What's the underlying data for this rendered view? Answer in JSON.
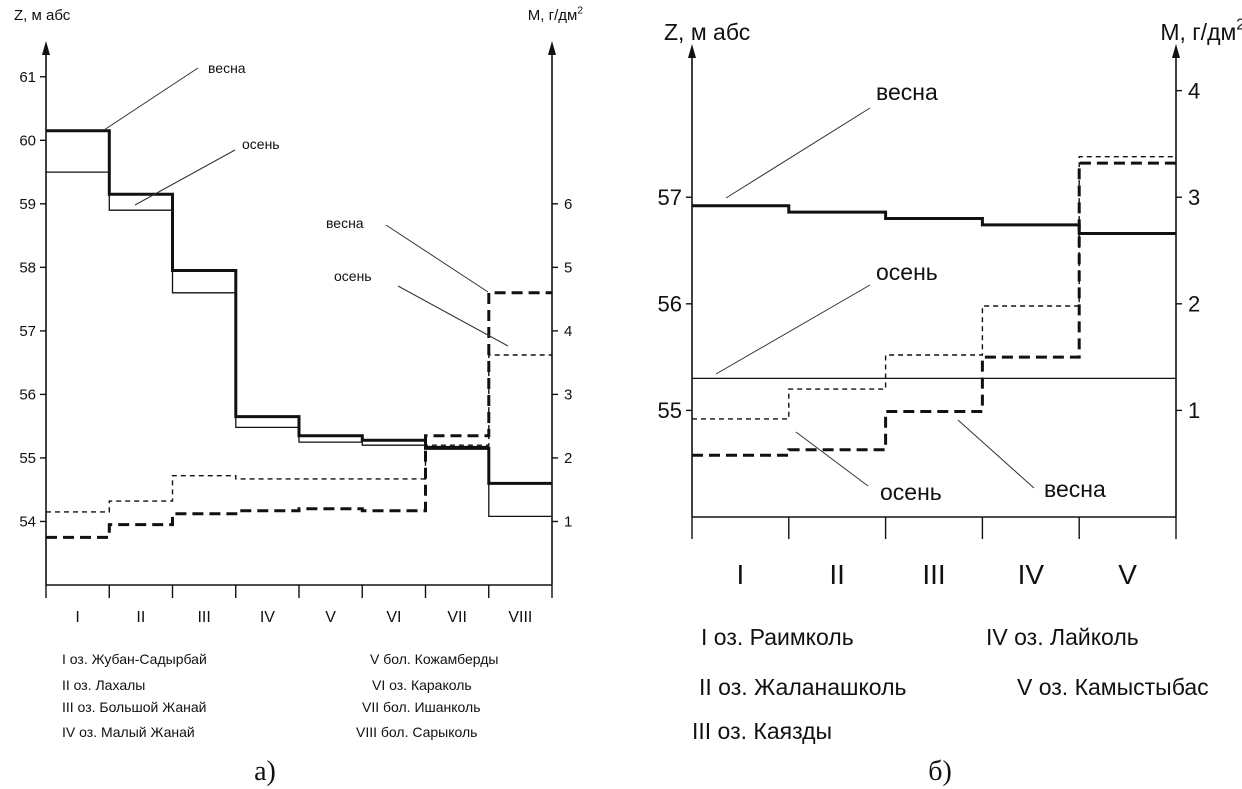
{
  "chart_data": [
    {
      "type": "step",
      "caption": "а)",
      "left_axis": {
        "label": "Z, м абс",
        "range": [
          53,
          61.5
        ],
        "ticks": [
          54,
          55,
          56,
          57,
          58,
          59,
          60,
          61
        ]
      },
      "right_axis": {
        "label": "M, г/дм²",
        "range": [
          0,
          8.5
        ],
        "ticks": [
          1,
          2,
          3,
          4,
          5,
          6
        ]
      },
      "categories": [
        "I",
        "II",
        "III",
        "IV",
        "V",
        "VI",
        "VII",
        "VIII"
      ],
      "series": [
        {
          "name": "весна",
          "axis": "left",
          "style": "thick",
          "values": [
            60.15,
            59.15,
            57.95,
            55.65,
            55.35,
            55.28,
            55.15,
            54.6
          ]
        },
        {
          "name": "осень",
          "axis": "left",
          "style": "thin",
          "values": [
            59.5,
            58.9,
            57.6,
            55.48,
            55.25,
            55.2,
            55.18,
            54.08
          ]
        },
        {
          "name": "весна",
          "axis": "right",
          "style": "dashed-thick",
          "values": [
            0.75,
            0.95,
            1.12,
            1.17,
            1.2,
            1.17,
            2.35,
            4.6
          ]
        },
        {
          "name": "осень",
          "axis": "right",
          "style": "dashed-thin",
          "values": [
            1.15,
            1.32,
            1.72,
            1.67,
            1.67,
            1.67,
            2.2,
            3.62
          ]
        }
      ],
      "annotations": [
        {
          "text": "весна",
          "series_index": 0
        },
        {
          "text": "осень",
          "series_index": 1
        },
        {
          "text": "весна",
          "series_index": 2
        },
        {
          "text": "осень",
          "series_index": 3
        }
      ],
      "legend": [
        "I оз. Жубан-Садырбай",
        "II оз. Лахалы",
        "III оз. Большой Жанай",
        "IV оз. Малый Жанай",
        "V бол. Кожамберды",
        "VI оз. Караколь",
        "VII бол. Ишанколь",
        "VIII бол. Сарыколь"
      ]
    },
    {
      "type": "step",
      "caption": "б)",
      "left_axis": {
        "label": "Z, м абс",
        "range": [
          54,
          58.4
        ],
        "ticks": [
          55,
          56,
          57
        ]
      },
      "right_axis": {
        "label": "M, г/дм²",
        "range": [
          0,
          4.4
        ],
        "ticks": [
          1,
          2,
          3,
          4
        ]
      },
      "categories": [
        "I",
        "II",
        "III",
        "IV",
        "V"
      ],
      "series": [
        {
          "name": "весна",
          "axis": "left",
          "style": "thick",
          "values": [
            56.92,
            56.86,
            56.8,
            56.74,
            56.66
          ]
        },
        {
          "name": "осень",
          "axis": "left",
          "style": "thin",
          "values": [
            55.3,
            55.3,
            55.3,
            55.3,
            55.3
          ]
        },
        {
          "name": "осень",
          "axis": "right",
          "style": "dashed-thin",
          "values": [
            0.92,
            1.2,
            1.52,
            1.98,
            3.38
          ]
        },
        {
          "name": "весна",
          "axis": "right",
          "style": "dashed-thick",
          "values": [
            0.58,
            0.63,
            0.99,
            1.5,
            3.32
          ]
        }
      ],
      "annotations": [
        {
          "text": "весна",
          "series_index": 0
        },
        {
          "text": "осень",
          "series_index": 1
        },
        {
          "text": "осень",
          "series_index": 2
        },
        {
          "text": "весна",
          "series_index": 3
        }
      ],
      "legend": [
        "I оз. Раимколь",
        "II оз. Жаланашколь",
        "III оз. Каязды",
        "IV оз. Лайколь",
        "V оз. Камыстыбас"
      ]
    }
  ]
}
